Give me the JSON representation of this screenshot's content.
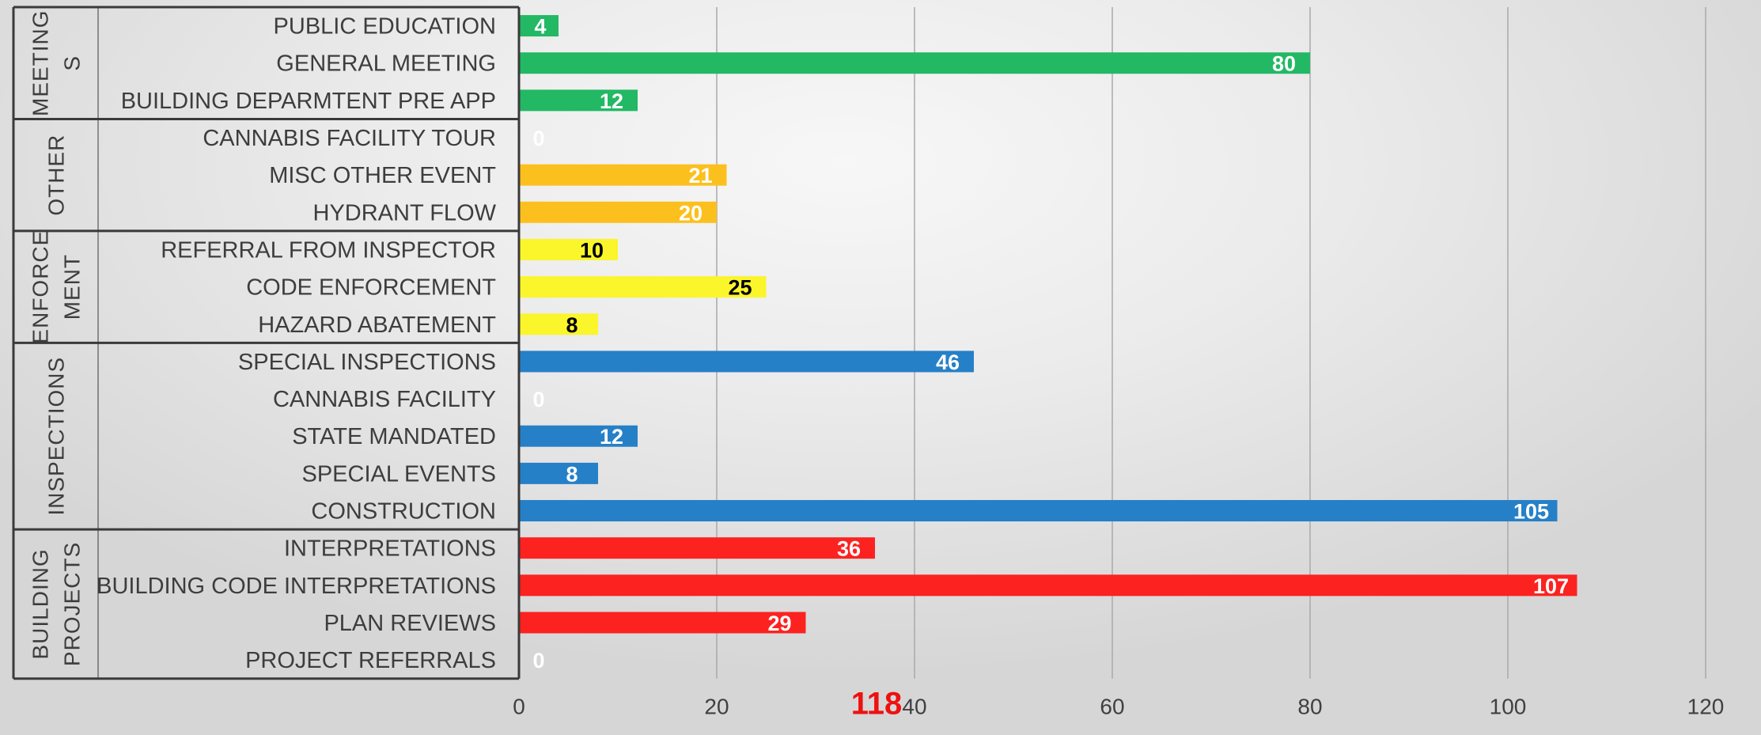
{
  "chart_data": {
    "type": "bar",
    "orientation": "horizontal",
    "xlim": [
      0,
      120
    ],
    "x_ticks": [
      "0",
      "20",
      "40",
      "60",
      "80",
      "100",
      "120"
    ],
    "grid": "vertical",
    "groups": [
      {
        "label": "MEETING S",
        "label_lines": [
          "MEETING",
          "S"
        ],
        "color": "#22b864",
        "label_color": "#ffffff",
        "items": [
          {
            "label": "PUBLIC EDUCATION",
            "value": 4
          },
          {
            "label": "GENERAL MEETING",
            "value": 80
          },
          {
            "label": "BUILDING DEPARMTENT PRE APP",
            "value": 12
          }
        ]
      },
      {
        "label": "OTHER",
        "label_lines": [
          "OTHER"
        ],
        "color": "#fcc01e",
        "label_color": "#ffffff",
        "items": [
          {
            "label": "CANNABIS FACILITY TOUR",
            "value": 0
          },
          {
            "label": "MISC OTHER EVENT",
            "value": 21
          },
          {
            "label": "HYDRANT FLOW",
            "value": 20
          }
        ]
      },
      {
        "label": "ENFORCE MENT",
        "label_lines": [
          "ENFORCE",
          "MENT"
        ],
        "color": "#fbf52b",
        "label_color": "#000000",
        "items": [
          {
            "label": "REFERRAL FROM INSPECTOR",
            "value": 10
          },
          {
            "label": "CODE ENFORCEMENT",
            "value": 25
          },
          {
            "label": "HAZARD ABATEMENT",
            "value": 8
          }
        ]
      },
      {
        "label": "INSPECTIONS",
        "label_lines": [
          "INSPECTIONS"
        ],
        "color": "#2680c8",
        "label_color": "#ffffff",
        "items": [
          {
            "label": "SPECIAL INSPECTIONS",
            "value": 46
          },
          {
            "label": "CANNABIS FACILITY",
            "value": 0
          },
          {
            "label": "STATE MANDATED",
            "value": 12
          },
          {
            "label": "SPECIAL EVENTS",
            "value": 8
          },
          {
            "label": "CONSTRUCTION",
            "value": 105
          }
        ]
      },
      {
        "label": "BUILDING PROJECTS",
        "label_lines": [
          "BUILDING",
          "PROJECTS"
        ],
        "color": "#fc2220",
        "label_color": "#ffffff",
        "items": [
          {
            "label": "INTERPRETATIONS",
            "value": 36
          },
          {
            "label": "BUILDING CODE INTERPRETATIONS",
            "value": 107
          },
          {
            "label": "PLAN REVIEWS",
            "value": 29
          },
          {
            "label": "PROJECT REFERRALS",
            "value": 0
          }
        ]
      }
    ],
    "annotation": {
      "text": "118",
      "color": "#ee1111",
      "at_value": 36
    }
  }
}
